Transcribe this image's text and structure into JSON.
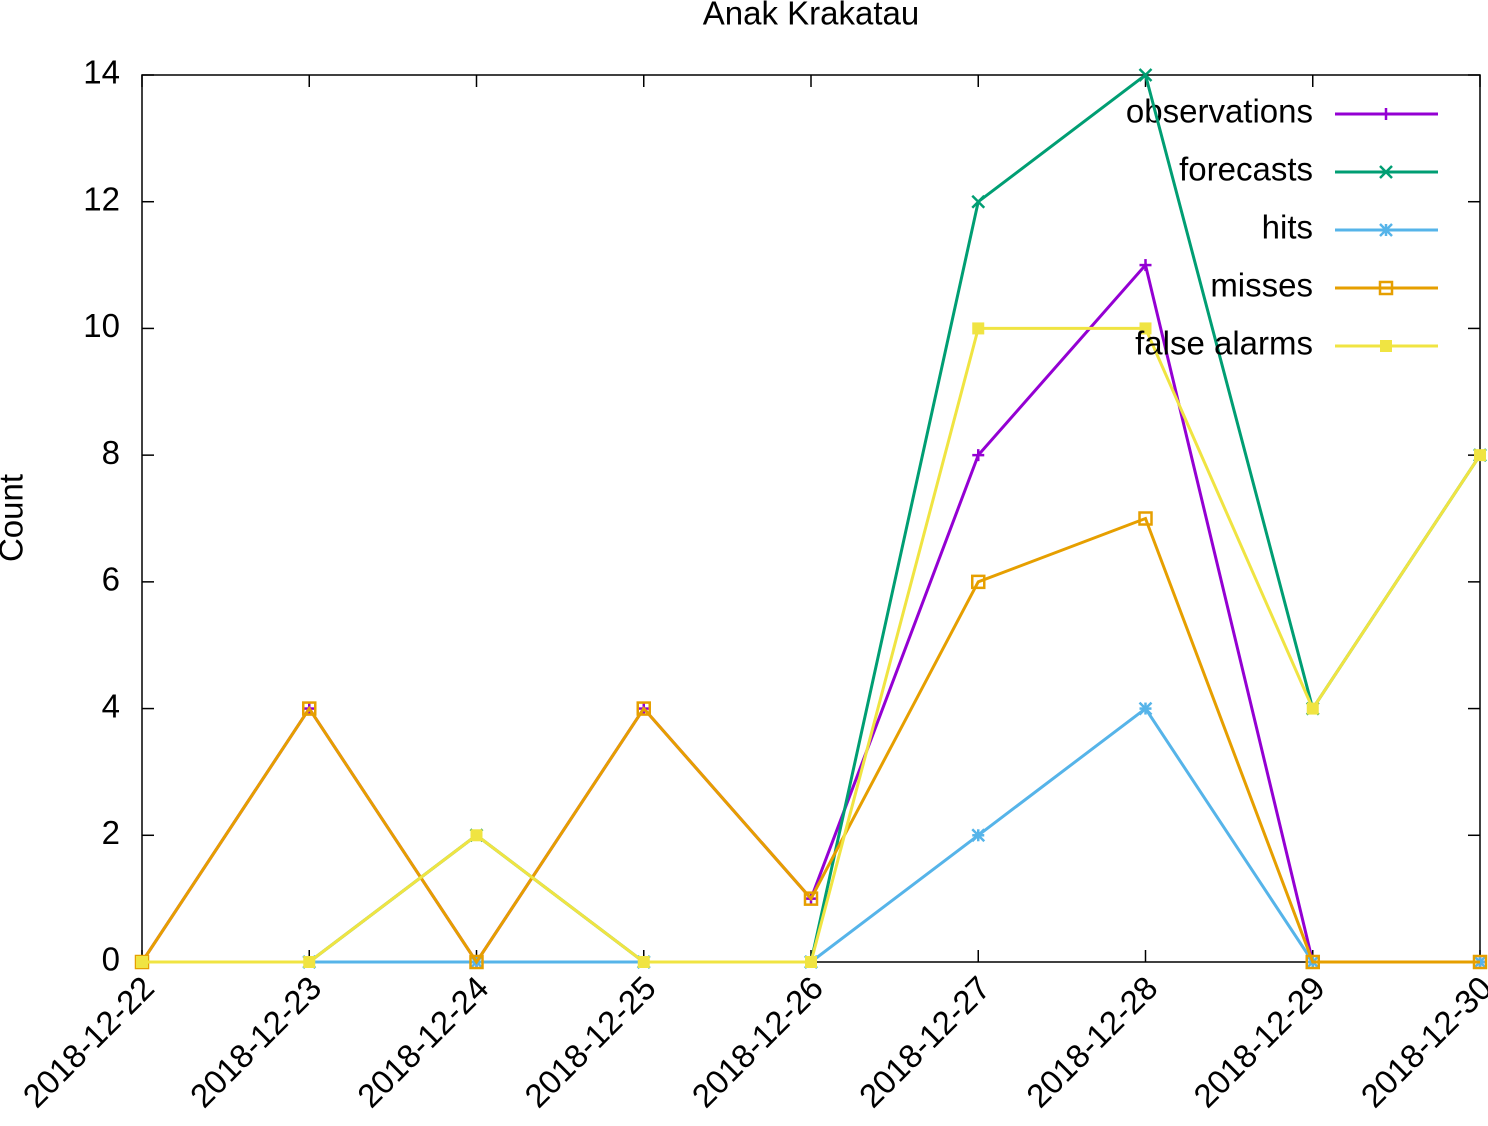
{
  "chart_data": {
    "type": "line",
    "title": "Anak Krakatau",
    "y_label": "Count",
    "categories": [
      "2018-12-22",
      "2018-12-23",
      "2018-12-24",
      "2018-12-25",
      "2018-12-26",
      "2018-12-27",
      "2018-12-28",
      "2018-12-29",
      "2018-12-30"
    ],
    "series": [
      {
        "name": "observations",
        "color": "#9400d3",
        "marker": "plus",
        "values": [
          0,
          4,
          0,
          4,
          1,
          8,
          11,
          0,
          0
        ]
      },
      {
        "name": "forecasts",
        "color": "#009e73",
        "marker": "cross",
        "values": [
          0,
          0,
          2,
          0,
          0,
          12,
          14,
          4,
          8
        ]
      },
      {
        "name": "hits",
        "color": "#56b4e9",
        "marker": "star",
        "values": [
          0,
          0,
          0,
          0,
          0,
          2,
          4,
          0,
          0
        ]
      },
      {
        "name": "misses",
        "color": "#e69f00",
        "marker": "open-square",
        "values": [
          0,
          4,
          0,
          4,
          1,
          6,
          7,
          0,
          0
        ]
      },
      {
        "name": "false alarms",
        "color": "#f0e442",
        "marker": "square",
        "values": [
          0,
          0,
          2,
          0,
          0,
          10,
          10,
          4,
          8
        ]
      }
    ],
    "ylim": [
      0,
      14
    ],
    "yticks": [
      0,
      2,
      4,
      6,
      8,
      10,
      12,
      14
    ],
    "legend": "top-right"
  }
}
